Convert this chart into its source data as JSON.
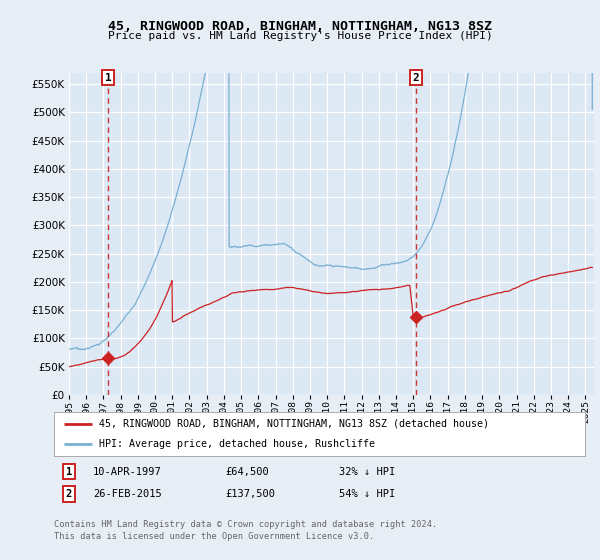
{
  "title": "45, RINGWOOD ROAD, BINGHAM, NOTTINGHAM, NG13 8SZ",
  "subtitle": "Price paid vs. HM Land Registry's House Price Index (HPI)",
  "legend_line1": "45, RINGWOOD ROAD, BINGHAM, NOTTINGHAM, NG13 8SZ (detached house)",
  "legend_line2": "HPI: Average price, detached house, Rushcliffe",
  "annotation1_date": "10-APR-1997",
  "annotation1_price": "£64,500",
  "annotation1_pct": "32% ↓ HPI",
  "annotation2_date": "26-FEB-2015",
  "annotation2_price": "£137,500",
  "annotation2_pct": "54% ↓ HPI",
  "footnote1": "Contains HM Land Registry data © Crown copyright and database right 2024.",
  "footnote2": "This data is licensed under the Open Government Licence v3.0.",
  "ylim": [
    0,
    570000
  ],
  "yticks": [
    0,
    50000,
    100000,
    150000,
    200000,
    250000,
    300000,
    350000,
    400000,
    450000,
    500000,
    550000
  ],
  "bg_color": "#e8eef5",
  "plot_bg_color": "#dce8f4",
  "grid_color": "#ffffff",
  "hpi_color": "#7ab0d4",
  "price_color": "#cc2222",
  "vline_color": "#cc2222",
  "marker1_x": 1997.28,
  "marker1_y": 64500,
  "marker2_x": 2015.15,
  "marker2_y": 137500,
  "xmin": 1995.0,
  "xmax": 2025.5
}
